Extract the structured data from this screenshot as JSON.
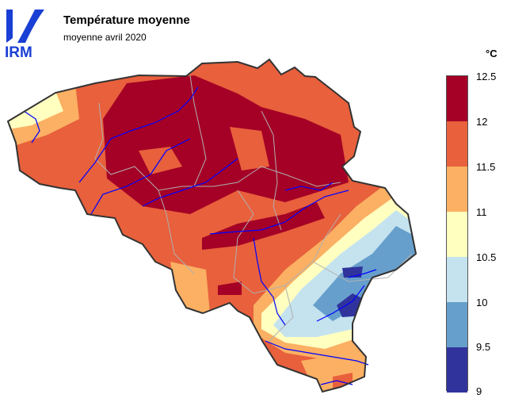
{
  "header": {
    "logo_text": "IRM",
    "title": "Température moyenne",
    "subtitle": "moyenne avril 2020"
  },
  "legend": {
    "unit": "°C",
    "ticks": [
      "12.5",
      "12",
      "11.5",
      "11",
      "10.5",
      "10",
      "9.5",
      "9"
    ],
    "bins": [
      {
        "range": "12–12.5",
        "color": "#a50026"
      },
      {
        "range": "11.5–12",
        "color": "#e8603c"
      },
      {
        "range": "11–11.5",
        "color": "#fbb063"
      },
      {
        "range": "10.5–11",
        "color": "#ffffc0"
      },
      {
        "range": "10–10.5",
        "color": "#c4e3ef"
      },
      {
        "range": "9.5–10",
        "color": "#679fcc"
      },
      {
        "range": "9–9.5",
        "color": "#30339b"
      }
    ]
  },
  "map": {
    "region": "Belgium",
    "water_color": "#0000ff",
    "border_color": "#333333",
    "province_border_color": "#b0b0b0"
  }
}
